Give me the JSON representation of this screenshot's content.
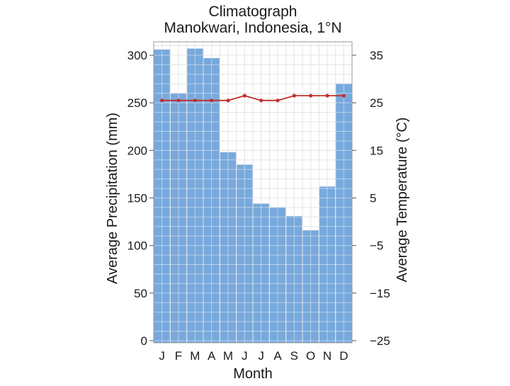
{
  "chart_data": {
    "type": "bar+line",
    "title": "Climatograph",
    "subtitle": "Manokwari, Indonesia, 1°N",
    "xlabel": "Month",
    "ylabel_left": "Average Precipitation (mm)",
    "ylabel_right": "Average Temperature (°C)",
    "categories": [
      "J",
      "F",
      "M",
      "A",
      "M",
      "J",
      "J",
      "A",
      "S",
      "O",
      "N",
      "D"
    ],
    "ylim_left": [
      0,
      300
    ],
    "ylim_right": [
      -25,
      35
    ],
    "yticks_left": [
      "0",
      "50",
      "100",
      "150",
      "200",
      "250",
      "300"
    ],
    "yticks_right": [
      "−25",
      "−15",
      "−5",
      "5",
      "15",
      "25",
      "35"
    ],
    "grid": true,
    "series": [
      {
        "kind": "bar",
        "axis": "left",
        "color": "#78a9dc",
        "values": [
          306,
          260,
          307,
          297,
          198,
          185,
          144,
          140,
          131,
          116,
          162,
          270
        ]
      },
      {
        "kind": "line",
        "axis": "right",
        "color": "#c0302c",
        "values": [
          25.5,
          25.5,
          25.5,
          25.5,
          25.5,
          26.5,
          25.5,
          25.5,
          26.5,
          26.5,
          26.5,
          26.5
        ]
      }
    ]
  }
}
